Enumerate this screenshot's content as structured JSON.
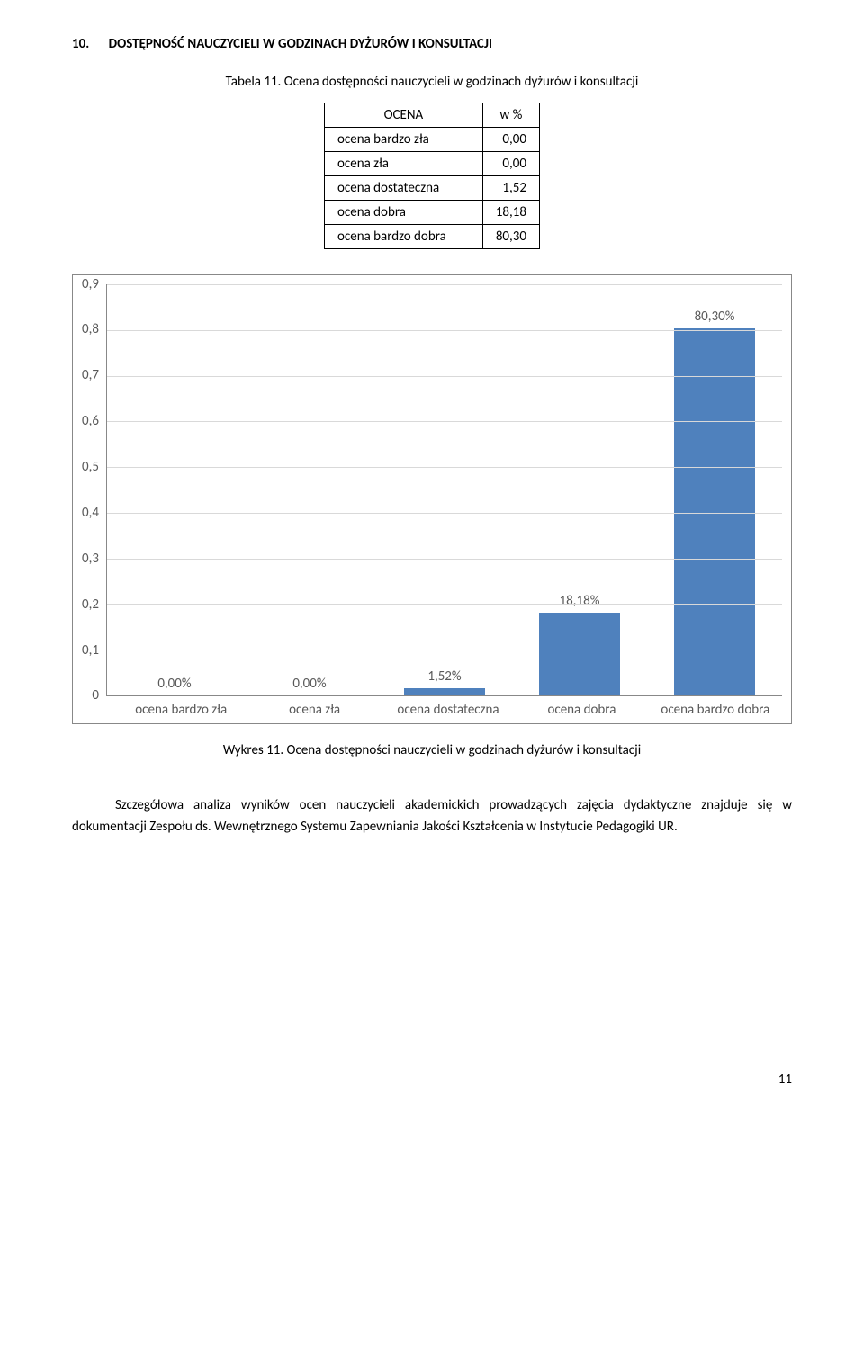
{
  "heading": {
    "number": "10.",
    "title": "DOSTĘPNOŚĆ NAUCZYCIELI W GODZINACH DYŻURÓW I KONSULTACJI"
  },
  "table": {
    "caption": "Tabela 11. Ocena dostępności nauczycieli w godzinach dyżurów i konsultacji",
    "columns": [
      "OCENA",
      "w  %"
    ],
    "rows": [
      {
        "label": "ocena bardzo zła",
        "value": "0,00"
      },
      {
        "label": "ocena zła",
        "value": "0,00"
      },
      {
        "label": "ocena dostateczna",
        "value": "1,52"
      },
      {
        "label": "ocena dobra",
        "value": "18,18"
      },
      {
        "label": "ocena bardzo dobra",
        "value": "80,30"
      }
    ]
  },
  "chart": {
    "type": "bar",
    "ylim_min": 0,
    "ylim_max": 0.9,
    "ytick_step": 0.1,
    "yticks": [
      "0,9",
      "0,8",
      "0,7",
      "0,6",
      "0,5",
      "0,4",
      "0,3",
      "0,2",
      "0,1",
      "0"
    ],
    "grid_color": "#d9d9d9",
    "axis_color": "#888888",
    "text_color": "#595959",
    "background_color": "#ffffff",
    "bar_color": "#4f81bd",
    "bar_width": 0.6,
    "series": [
      {
        "category": "ocena bardzo zła",
        "value": 0.0,
        "label": "0,00%"
      },
      {
        "category": "ocena zła",
        "value": 0.0,
        "label": "0,00%"
      },
      {
        "category": "ocena dostateczna",
        "value": 0.0152,
        "label": "1,52%"
      },
      {
        "category": "ocena dobra",
        "value": 0.1818,
        "label": "18,18%"
      },
      {
        "category": "ocena bardzo dobra",
        "value": 0.803,
        "label": "80,30%"
      }
    ],
    "caption": "Wykres 11. Ocena dostępności nauczycieli w godzinach dyżurów i konsultacji"
  },
  "body_paragraph": "Szczegółowa analiza wyników ocen nauczycieli akademickich prowadzących zajęcia dydaktyczne znajduje się w dokumentacji Zespołu ds. Wewnętrznego Systemu Zapewniania Jakości Kształcenia w Instytucie Pedagogiki UR.",
  "page_number": "11"
}
